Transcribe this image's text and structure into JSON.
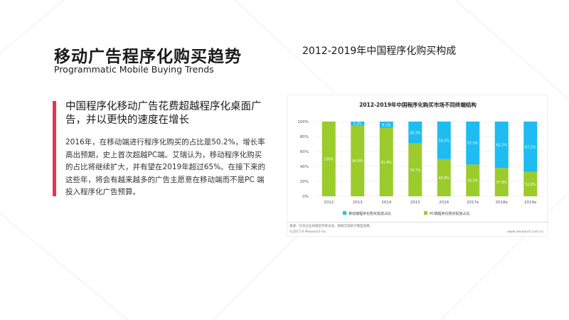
{
  "page": {
    "title_cn": "移动广告程序化购买趋势",
    "title_en": "Programmatic Mobile Buying Trends",
    "headline": "中国程序化移动广告花费超越程序化桌面广告，并以更快的速度在增长",
    "body": "2016年，在移动端进行程序化购买的占比是50.2%，增长率高出预期，史上首次超越PC端。艾瑞认为，移动程序化购买的占比将继续扩大，并有望在2019年超过65%。在接下来的这些年，将会有越来越多的广告主愿意在移动端而不是PC 端投入程序化广告预算。",
    "right_title": "2012-2019年中国程序化购买构成"
  },
  "colors": {
    "accent": "#e8344f",
    "mobile": "#1ebcf0",
    "pc": "#9ccb2c"
  },
  "chart_data": {
    "type": "bar",
    "stacked": true,
    "title": "2012-2019年中国程序化购买市场不同终端结构",
    "categories": [
      "2012",
      "2013",
      "2014",
      "2015",
      "2016",
      "2017e",
      "2018e",
      "2019e"
    ],
    "series": [
      {
        "name": "PC端程序化购买投放占比",
        "values": [
          100,
          94.8,
          91.9,
          70.7,
          49.8,
          42.5,
          37.8,
          32.8
        ],
        "labels": [
          "100%",
          "94.8%",
          "91.9%",
          "70.7%",
          "49.8%",
          "42.5%",
          "37.8%",
          "32.8%"
        ]
      },
      {
        "name": "移动端程序化购买投放占比",
        "values": [
          0,
          5.2,
          8.1,
          29.3,
          50.2,
          57.5,
          62.2,
          67.2
        ],
        "labels": [
          "",
          "5.2%",
          "8.1%",
          "29.3%",
          "50.2%",
          "57.5%",
          "62.2%",
          "67.2%"
        ]
      }
    ],
    "y_ticks": [
      "0%",
      "20%",
      "40%",
      "60%",
      "80%",
      "100%"
    ],
    "ylim": [
      0,
      100
    ],
    "legend_position": "bottom",
    "source": "来源：综合企业财报及专家访谈，根据艾瑞统计模型核算。",
    "copyright": "©2017.6 iResearch Inc",
    "site": "www.iresearch.com.cn"
  }
}
